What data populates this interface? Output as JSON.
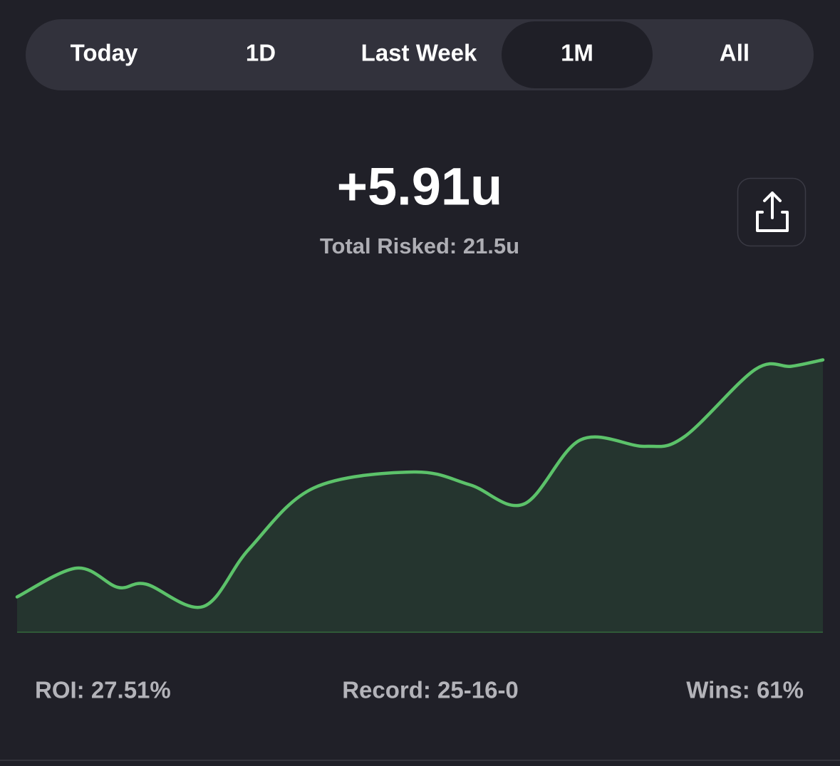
{
  "tabs": [
    "Today",
    "1D",
    "Last Week",
    "1M",
    "All"
  ],
  "selected_tab": 3,
  "total": "+5.91u",
  "risked": "Total Risked: 21.5u",
  "stats": [
    "ROI: 27.51%",
    "Record: 25-16-0",
    "Wins: 61%"
  ],
  "chart_data": {
    "type": "area",
    "color": "#5cc26a",
    "x": [
      0,
      7.4,
      12.5,
      16,
      23.1,
      28.8,
      36.8,
      49.2,
      56.2,
      62.9,
      69.9,
      77.9,
      82.8,
      91.6,
      96.1,
      100
    ],
    "values": [
      11,
      20,
      14,
      15,
      8,
      26,
      45,
      50,
      46,
      40,
      60,
      58,
      61,
      82,
      83,
      85
    ],
    "xlim": [
      0,
      100
    ],
    "ylim": [
      0,
      100
    ]
  }
}
